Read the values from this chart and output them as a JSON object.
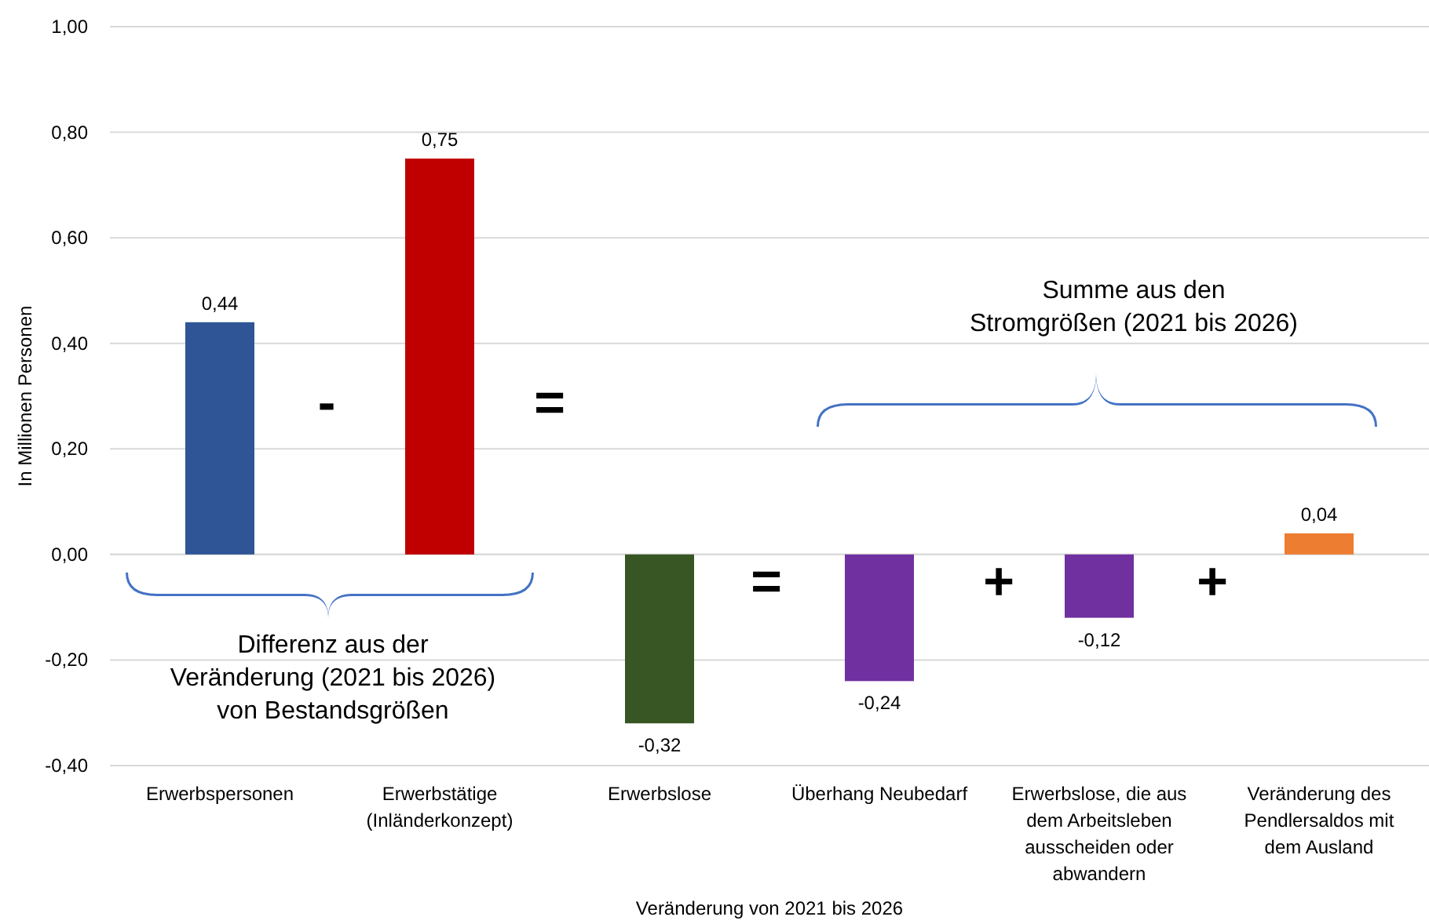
{
  "chart_data": {
    "type": "bar",
    "ylabel": "In Millionen Personen",
    "xlabel": "Veränderung von 2021 bis 2026",
    "categories": [
      "Erwerbspersonen",
      "Erwerbstätige (Inländerkonzept)",
      "Erwerbslose",
      "Überhang Neubedarf",
      "Erwerbslose, die aus dem Arbeitsleben ausscheiden oder abwandern",
      "Veränderung des Pendlersaldos mit dem Ausland"
    ],
    "values": [
      0.44,
      0.75,
      -0.32,
      -0.24,
      -0.12,
      0.04
    ],
    "colors": [
      "#2f5597",
      "#c00000",
      "#375623",
      "#7030a0",
      "#7030a0",
      "#ed7d31"
    ],
    "value_labels": [
      "0,44",
      "0,75",
      "-0,32",
      "-0,24",
      "-0,12",
      "0,04"
    ],
    "ylim": [
      -0.4,
      1.0
    ],
    "yticks": [
      {
        "value": -0.4,
        "label": "-0,40"
      },
      {
        "value": -0.2,
        "label": "-0,20"
      },
      {
        "value": 0,
        "label": "0,00"
      },
      {
        "value": 0.2,
        "label": "0,20"
      },
      {
        "value": 0.4,
        "label": "0,40"
      },
      {
        "value": 0.6,
        "label": "0,60"
      },
      {
        "value": 0.8,
        "label": "0,80"
      },
      {
        "value": 1.0,
        "label": "1,00"
      }
    ],
    "grid": "y",
    "annotations": [
      "-",
      "=",
      "=",
      "+",
      "+",
      "Differenz aus der\nVeränderung (2021 bis 2026)\nvon Bestandsgrößen",
      "Summe aus den\nStromgrößen (2021 bis 2026)"
    ]
  }
}
